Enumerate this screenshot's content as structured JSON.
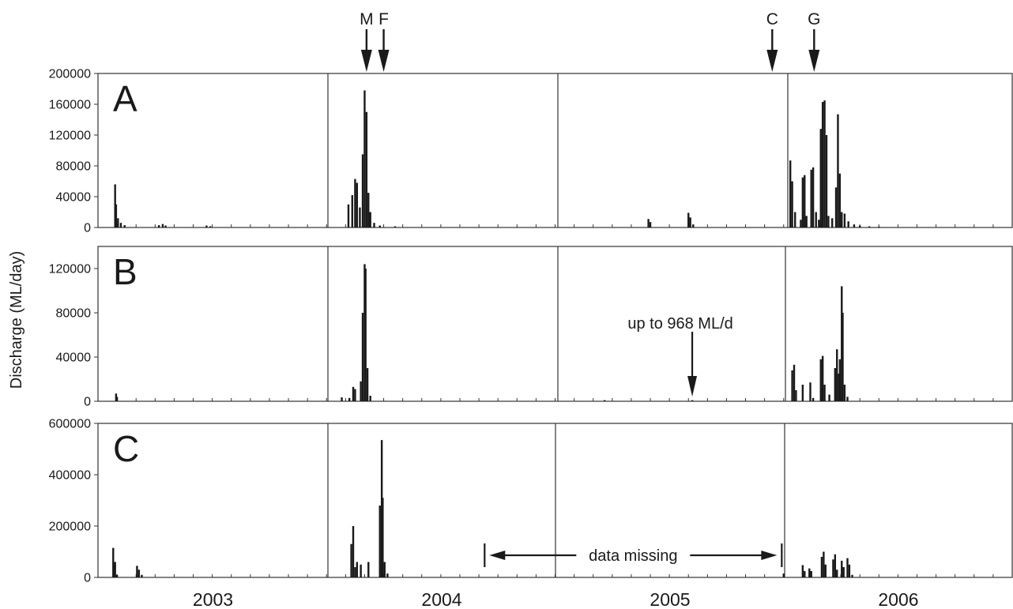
{
  "chart_data": {
    "type": "bar",
    "ylabel": "Discharge (ML/day)",
    "x_unit": "months from January 2003",
    "xlim": [
      0,
      48
    ],
    "year_labels": [
      "2003",
      "2004",
      "2005",
      "2006"
    ],
    "event_markers": [
      {
        "label": "M",
        "x": 14.1
      },
      {
        "label": "F",
        "x": 15.0
      },
      {
        "label": "C",
        "x": 35.4
      },
      {
        "label": "G",
        "x": 37.6
      }
    ],
    "panels": [
      {
        "label": "A",
        "ylim": [
          0,
          200000
        ],
        "yticks": [
          "0",
          "40000",
          "80000",
          "120000",
          "160000",
          "200000"
        ],
        "spikes": [
          {
            "x": 0.9,
            "y": 56000
          },
          {
            "x": 0.95,
            "y": 30000
          },
          {
            "x": 1.05,
            "y": 12000
          },
          {
            "x": 1.2,
            "y": 6000
          },
          {
            "x": 1.4,
            "y": 3000
          },
          {
            "x": 3.2,
            "y": 3000
          },
          {
            "x": 3.4,
            "y": 4500
          },
          {
            "x": 3.55,
            "y": 2500
          },
          {
            "x": 5.7,
            "y": 2500
          },
          {
            "x": 5.9,
            "y": 1500
          },
          {
            "x": 13.15,
            "y": 30000
          },
          {
            "x": 13.35,
            "y": 42000
          },
          {
            "x": 13.5,
            "y": 63000
          },
          {
            "x": 13.6,
            "y": 58000
          },
          {
            "x": 13.75,
            "y": 26000
          },
          {
            "x": 13.9,
            "y": 95000
          },
          {
            "x": 14.0,
            "y": 178000
          },
          {
            "x": 14.1,
            "y": 150000
          },
          {
            "x": 14.2,
            "y": 45000
          },
          {
            "x": 14.3,
            "y": 20000
          },
          {
            "x": 14.5,
            "y": 6000
          },
          {
            "x": 14.8,
            "y": 2500
          },
          {
            "x": 15.6,
            "y": 1500
          },
          {
            "x": 28.9,
            "y": 11000
          },
          {
            "x": 29.0,
            "y": 7000
          },
          {
            "x": 31.0,
            "y": 19000
          },
          {
            "x": 31.1,
            "y": 13000
          },
          {
            "x": 31.25,
            "y": 4000
          },
          {
            "x": 36.35,
            "y": 87000
          },
          {
            "x": 36.45,
            "y": 60000
          },
          {
            "x": 36.6,
            "y": 20000
          },
          {
            "x": 36.9,
            "y": 10000
          },
          {
            "x": 37.0,
            "y": 65000
          },
          {
            "x": 37.1,
            "y": 68000
          },
          {
            "x": 37.2,
            "y": 15000
          },
          {
            "x": 37.45,
            "y": 75000
          },
          {
            "x": 37.55,
            "y": 78000
          },
          {
            "x": 37.7,
            "y": 20000
          },
          {
            "x": 37.85,
            "y": 10000
          },
          {
            "x": 37.95,
            "y": 128000
          },
          {
            "x": 38.05,
            "y": 163000
          },
          {
            "x": 38.15,
            "y": 165000
          },
          {
            "x": 38.25,
            "y": 120000
          },
          {
            "x": 38.35,
            "y": 15000
          },
          {
            "x": 38.55,
            "y": 12000
          },
          {
            "x": 38.75,
            "y": 52000
          },
          {
            "x": 38.85,
            "y": 147000
          },
          {
            "x": 38.95,
            "y": 70000
          },
          {
            "x": 39.05,
            "y": 20000
          },
          {
            "x": 39.2,
            "y": 18000
          },
          {
            "x": 39.4,
            "y": 8000
          },
          {
            "x": 39.7,
            "y": 4000
          },
          {
            "x": 40.0,
            "y": 2500
          },
          {
            "x": 40.5,
            "y": 1500
          },
          {
            "x": 41.0,
            "y": 1000
          }
        ]
      },
      {
        "label": "B",
        "ylim": [
          0,
          140000
        ],
        "yticks": [
          "0",
          "40000",
          "80000",
          "120000"
        ],
        "annotation": {
          "text": "up to 968 ML/d",
          "x": 31.2,
          "y": 968
        },
        "spikes": [
          {
            "x": 0.95,
            "y": 7000
          },
          {
            "x": 1.0,
            "y": 4000
          },
          {
            "x": 12.8,
            "y": 3500
          },
          {
            "x": 13.2,
            "y": 3000
          },
          {
            "x": 13.4,
            "y": 13000
          },
          {
            "x": 13.5,
            "y": 11000
          },
          {
            "x": 13.8,
            "y": 18000
          },
          {
            "x": 13.9,
            "y": 80000
          },
          {
            "x": 14.0,
            "y": 124000
          },
          {
            "x": 14.05,
            "y": 120000
          },
          {
            "x": 14.15,
            "y": 30000
          },
          {
            "x": 14.3,
            "y": 5000
          },
          {
            "x": 26.6,
            "y": 1000
          },
          {
            "x": 31.2,
            "y": 968
          },
          {
            "x": 36.45,
            "y": 28000
          },
          {
            "x": 36.55,
            "y": 33000
          },
          {
            "x": 36.65,
            "y": 10000
          },
          {
            "x": 37.0,
            "y": 15000
          },
          {
            "x": 37.4,
            "y": 17000
          },
          {
            "x": 37.55,
            "y": 3000
          },
          {
            "x": 37.95,
            "y": 38000
          },
          {
            "x": 38.05,
            "y": 41000
          },
          {
            "x": 38.15,
            "y": 15000
          },
          {
            "x": 38.4,
            "y": 6000
          },
          {
            "x": 38.7,
            "y": 30000
          },
          {
            "x": 38.8,
            "y": 47000
          },
          {
            "x": 38.9,
            "y": 25000
          },
          {
            "x": 38.95,
            "y": 38000
          },
          {
            "x": 39.05,
            "y": 104000
          },
          {
            "x": 39.1,
            "y": 80000
          },
          {
            "x": 39.2,
            "y": 15000
          },
          {
            "x": 39.35,
            "y": 4000
          }
        ]
      },
      {
        "label": "C",
        "ylim": [
          0,
          600000
        ],
        "yticks": [
          "0",
          "200000",
          "400000",
          "600000"
        ],
        "missing": {
          "text": "data missing",
          "from": 20.3,
          "to": 35.9
        },
        "spikes": [
          {
            "x": 0.8,
            "y": 115000
          },
          {
            "x": 0.9,
            "y": 60000
          },
          {
            "x": 1.0,
            "y": 10000
          },
          {
            "x": 2.05,
            "y": 45000
          },
          {
            "x": 2.15,
            "y": 30000
          },
          {
            "x": 2.3,
            "y": 10000
          },
          {
            "x": 13.3,
            "y": 130000
          },
          {
            "x": 13.4,
            "y": 200000
          },
          {
            "x": 13.5,
            "y": 40000
          },
          {
            "x": 13.6,
            "y": 60000
          },
          {
            "x": 13.8,
            "y": 50000
          },
          {
            "x": 14.2,
            "y": 60000
          },
          {
            "x": 14.8,
            "y": 280000
          },
          {
            "x": 14.9,
            "y": 535000
          },
          {
            "x": 14.95,
            "y": 310000
          },
          {
            "x": 15.05,
            "y": 60000
          },
          {
            "x": 15.2,
            "y": 15000
          },
          {
            "x": 36.0,
            "y": 15000
          },
          {
            "x": 37.0,
            "y": 48000
          },
          {
            "x": 37.1,
            "y": 25000
          },
          {
            "x": 37.35,
            "y": 35000
          },
          {
            "x": 37.45,
            "y": 25000
          },
          {
            "x": 38.0,
            "y": 80000
          },
          {
            "x": 38.1,
            "y": 100000
          },
          {
            "x": 38.2,
            "y": 50000
          },
          {
            "x": 38.6,
            "y": 70000
          },
          {
            "x": 38.7,
            "y": 90000
          },
          {
            "x": 38.8,
            "y": 30000
          },
          {
            "x": 39.05,
            "y": 65000
          },
          {
            "x": 39.15,
            "y": 40000
          },
          {
            "x": 39.35,
            "y": 75000
          },
          {
            "x": 39.45,
            "y": 50000
          },
          {
            "x": 39.6,
            "y": 10000
          }
        ]
      }
    ]
  }
}
